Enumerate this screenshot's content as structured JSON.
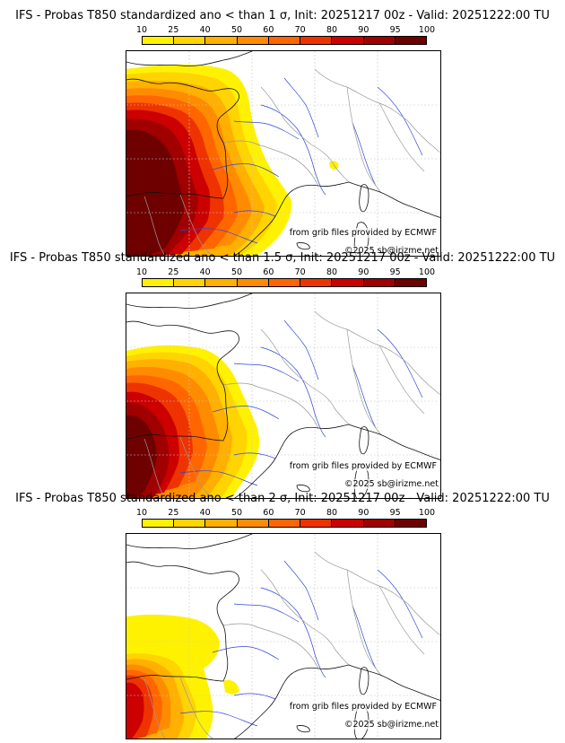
{
  "colorbar": {
    "ticks": [
      "10",
      "25",
      "40",
      "50",
      "60",
      "70",
      "80",
      "90",
      "95",
      "100"
    ],
    "colors": [
      "#fff200",
      "#ffd400",
      "#ffb000",
      "#ff8c00",
      "#ff6600",
      "#ee3300",
      "#cc0000",
      "#a00000",
      "#6e0000"
    ]
  },
  "panels": [
    {
      "title": "IFS - Probas T850  standardized ano < than 1 σ, Init: 20251217 00z - Valid: 20251222:00 TU",
      "sigma": 1,
      "credit_source": "from grib files provided by ECMWF",
      "credit_copyright": "©2025 sb@irizme.net"
    },
    {
      "title": "IFS - Probas T850  standardized ano < than 1.5 σ, Init: 20251217 00z - Valid: 20251222:00 TU",
      "sigma": 1.5,
      "credit_source": "from grib files provided by ECMWF",
      "credit_copyright": "©2025 sb@irizme.net"
    },
    {
      "title": "IFS - Probas T850  standardized ano < than 2 σ, Init: 20251217 00z - Valid: 20251222:00 TU",
      "sigma": 2,
      "credit_source": "from grib files provided by ECMWF",
      "credit_copyright": "©2025 sb@irizme.net"
    }
  ]
}
